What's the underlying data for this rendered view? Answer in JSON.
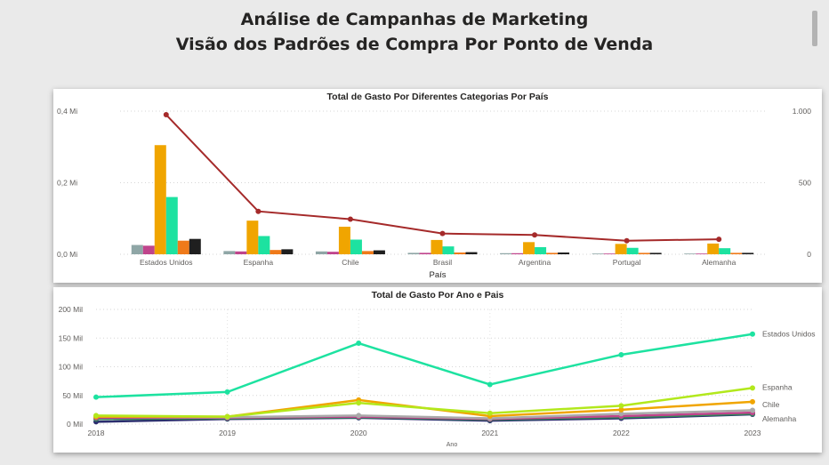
{
  "header": {
    "title_line1": "Análise de Campanhas de Marketing",
    "title_line2": "Visão dos Padrões de Compra Por Ponto de Venda"
  },
  "colors": {
    "page_background": "#eaeaea",
    "visual_background": "#ffffff",
    "line_total": "#a52a2a",
    "series_colors": [
      "#8fa6a6",
      "#c0448c",
      "#f0a500",
      "#1de2a0",
      "#ef7a1a",
      "#1f1f1f"
    ]
  },
  "chart_data": [
    {
      "type": "bar",
      "title": "Total de Gasto Por Diferentes Categorias Por País",
      "xlabel": "País",
      "ylabel": "",
      "categories": [
        "Estados Unidos",
        "Espanha",
        "Chile",
        "Brasil",
        "Argentina",
        "Portugal",
        "Alemanha"
      ],
      "ylim": [
        0,
        0.4
      ],
      "y_ticks": [
        {
          "value": 0,
          "label": "0,0 Mi"
        },
        {
          "value": 0.2,
          "label": "0,2 Mi"
        },
        {
          "value": 0.4,
          "label": "0,4 Mi"
        }
      ],
      "series": [
        {
          "values": [
            0.026,
            0.009,
            0.008,
            0.004,
            0.003,
            0.002,
            0.002
          ]
        },
        {
          "values": [
            0.024,
            0.008,
            0.007,
            0.004,
            0.003,
            0.002,
            0.002
          ]
        },
        {
          "values": [
            0.305,
            0.094,
            0.077,
            0.04,
            0.034,
            0.029,
            0.03
          ]
        },
        {
          "values": [
            0.16,
            0.051,
            0.041,
            0.022,
            0.02,
            0.018,
            0.017
          ]
        },
        {
          "values": [
            0.038,
            0.012,
            0.009,
            0.005,
            0.004,
            0.004,
            0.004
          ]
        },
        {
          "values": [
            0.043,
            0.014,
            0.011,
            0.006,
            0.005,
            0.004,
            0.004
          ]
        }
      ],
      "line": {
        "axis": "right",
        "values": [
          975,
          300,
          245,
          145,
          135,
          95,
          105
        ]
      },
      "y2lim": [
        0,
        1000
      ],
      "y2_ticks": [
        {
          "value": 0,
          "label": "0"
        },
        {
          "value": 500,
          "label": "500"
        },
        {
          "value": 1000,
          "label": "1.000"
        }
      ],
      "grid": true,
      "legend": "none"
    },
    {
      "type": "line",
      "title": "Total de Gasto Por Ano e Pais",
      "xlabel": "Ano",
      "ylabel": "",
      "x": [
        "2018",
        "2019",
        "2020",
        "2021",
        "2022",
        "2023"
      ],
      "ylim": [
        0,
        200
      ],
      "y_ticks": [
        {
          "value": 0,
          "label": "0 Mil"
        },
        {
          "value": 50,
          "label": "50 Mil"
        },
        {
          "value": 100,
          "label": "100 Mil"
        },
        {
          "value": 150,
          "label": "150 Mil"
        },
        {
          "value": 200,
          "label": "200 Mil"
        }
      ],
      "series": [
        {
          "name": "Estados Unidos",
          "color": "#1de2a0",
          "values": [
            47,
            56,
            141,
            69,
            121,
            157
          ]
        },
        {
          "name": "Espanha",
          "color": "#b2e81c",
          "values": [
            15,
            13,
            37,
            19,
            32,
            63
          ]
        },
        {
          "name": "Chile",
          "color": "#f0a500",
          "values": [
            13,
            13,
            42,
            14,
            25,
            39
          ]
        },
        {
          "name": "",
          "color": "#a9a9a9",
          "values": [
            13,
            12,
            15,
            10,
            18,
            24
          ]
        },
        {
          "name": "",
          "color": "#c0448c",
          "values": [
            11,
            11,
            13,
            9,
            14,
            20
          ]
        },
        {
          "name": "",
          "color": "#2e8b57",
          "values": [
            9,
            10,
            12,
            8,
            12,
            18
          ]
        },
        {
          "name": "Alemanha",
          "color": "#2b2d6e",
          "values": [
            4,
            9,
            11,
            6,
            10,
            17
          ]
        }
      ],
      "grid": true,
      "legend": "line-end labels"
    }
  ]
}
